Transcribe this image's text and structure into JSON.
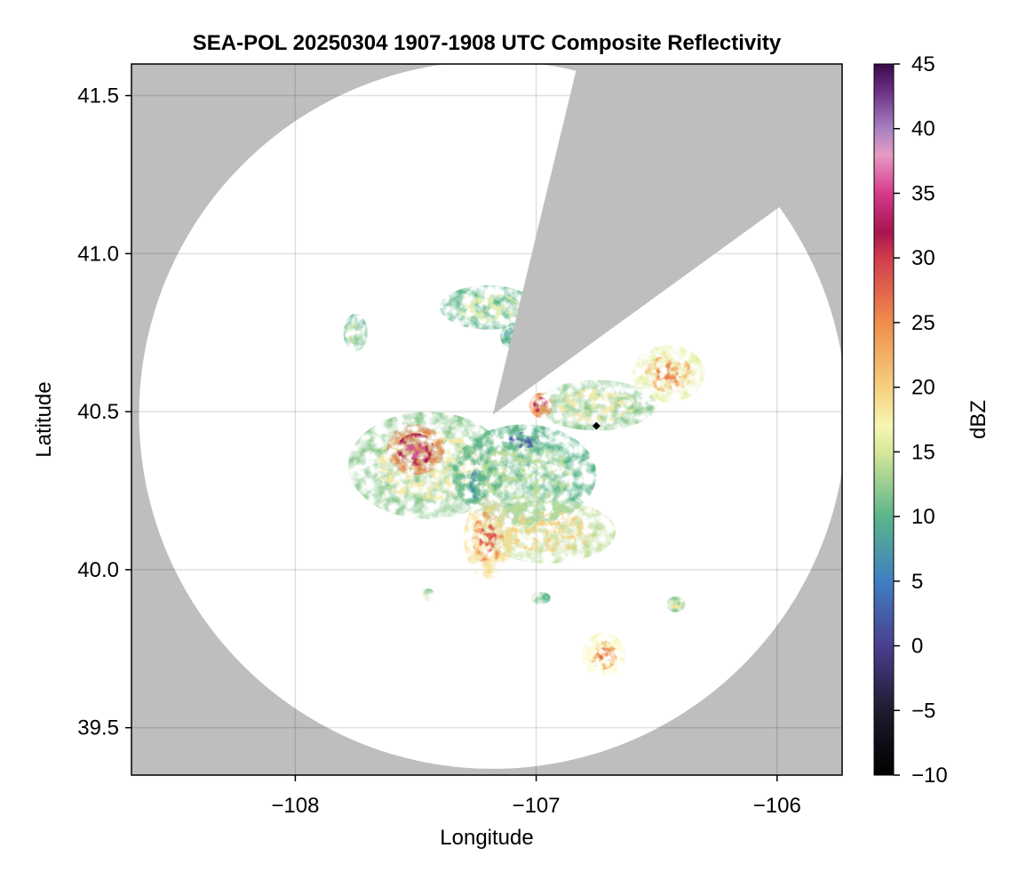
{
  "chart_data": {
    "type": "heatmap",
    "title": "SEA-POL 20250304 1907-1908 UTC Composite Reflectivity",
    "xlabel": "Longitude",
    "ylabel": "Latitude",
    "xlim": [
      -108.68,
      -105.73
    ],
    "ylim": [
      39.35,
      41.6
    ],
    "x_ticks": [
      {
        "value": -108,
        "label": "−108"
      },
      {
        "value": -107,
        "label": "−107"
      },
      {
        "value": -106,
        "label": "−106"
      }
    ],
    "y_ticks": [
      {
        "value": 39.5,
        "label": "39.5"
      },
      {
        "value": 40.0,
        "label": "40.0"
      },
      {
        "value": 40.5,
        "label": "40.5"
      },
      {
        "value": 41.0,
        "label": "41.0"
      },
      {
        "value": 41.5,
        "label": "41.5"
      }
    ],
    "grid": true,
    "radar_site": {
      "lon": -107.18,
      "lat": 40.49
    },
    "radar_coverage_radius_deg_lat": 1.12,
    "blocked_sectors": [
      {
        "lon_corners": [
          [
            -107.18,
            40.49
          ],
          [
            -106.85,
            41.53
          ],
          [
            -106.04,
            41.12
          ]
        ]
      }
    ],
    "marker": {
      "lon": -106.75,
      "lat": 40.455,
      "shape": "diamond"
    },
    "colorbar": {
      "label": "dBZ",
      "range": [
        -10,
        45
      ],
      "ticks": [
        -10,
        -5,
        0,
        5,
        10,
        15,
        20,
        25,
        30,
        35,
        40,
        45
      ],
      "tick_labels": [
        "−10",
        "−5",
        "0",
        "5",
        "10",
        "15",
        "20",
        "25",
        "30",
        "35",
        "40",
        "45"
      ],
      "colormap": "spectral-like",
      "stops": [
        {
          "v": -10,
          "c": "#000000"
        },
        {
          "v": -5,
          "c": "#1e1b2e"
        },
        {
          "v": 0,
          "c": "#4a3f8f"
        },
        {
          "v": 5,
          "c": "#3f7fc2"
        },
        {
          "v": 10,
          "c": "#5bb58a"
        },
        {
          "v": 15,
          "c": "#d7e79a"
        },
        {
          "v": 17,
          "c": "#f6f6b3"
        },
        {
          "v": 20,
          "c": "#f5d07f"
        },
        {
          "v": 25,
          "c": "#ef8d4c"
        },
        {
          "v": 30,
          "c": "#d23c4e"
        },
        {
          "v": 32,
          "c": "#a8144f"
        },
        {
          "v": 35,
          "c": "#d63a8c"
        },
        {
          "v": 38,
          "c": "#e79bc4"
        },
        {
          "v": 40,
          "c": "#a781c0"
        },
        {
          "v": 43,
          "c": "#6a2d83"
        },
        {
          "v": 45,
          "c": "#3a0a4a"
        }
      ]
    },
    "colors": {
      "masked": "#bebebe",
      "no_echo": "#ffffff",
      "grid": "#d9d9d9"
    },
    "echo_regions": [
      {
        "lon": -107.45,
        "lat": 40.33,
        "rx": 0.33,
        "ry": 0.17,
        "dbz": 18
      },
      {
        "lon": -107.5,
        "lat": 40.38,
        "rx": 0.12,
        "ry": 0.08,
        "dbz": 32
      },
      {
        "lon": -107.05,
        "lat": 40.3,
        "rx": 0.3,
        "ry": 0.16,
        "dbz": 14
      },
      {
        "lon": -106.95,
        "lat": 40.12,
        "rx": 0.28,
        "ry": 0.1,
        "dbz": 20
      },
      {
        "lon": -107.2,
        "lat": 40.1,
        "rx": 0.1,
        "ry": 0.13,
        "dbz": 25
      },
      {
        "lon": -107.05,
        "lat": 40.41,
        "rx": 0.1,
        "ry": 0.04,
        "dbz": 2
      },
      {
        "lon": -107.25,
        "lat": 40.27,
        "rx": 0.04,
        "ry": 0.07,
        "dbz": 6
      },
      {
        "lon": -107.2,
        "lat": 40.83,
        "rx": 0.2,
        "ry": 0.07,
        "dbz": 16
      },
      {
        "lon": -107.1,
        "lat": 40.74,
        "rx": 0.05,
        "ry": 0.04,
        "dbz": 6
      },
      {
        "lon": -106.75,
        "lat": 40.52,
        "rx": 0.25,
        "ry": 0.08,
        "dbz": 18
      },
      {
        "lon": -106.98,
        "lat": 40.52,
        "rx": 0.05,
        "ry": 0.04,
        "dbz": 31
      },
      {
        "lon": -106.45,
        "lat": 40.62,
        "rx": 0.15,
        "ry": 0.09,
        "dbz": 22
      },
      {
        "lon": -106.72,
        "lat": 39.73,
        "rx": 0.09,
        "ry": 0.07,
        "dbz": 23
      },
      {
        "lon": -106.42,
        "lat": 39.89,
        "rx": 0.04,
        "ry": 0.025,
        "dbz": 18
      },
      {
        "lon": -106.98,
        "lat": 39.91,
        "rx": 0.04,
        "ry": 0.02,
        "dbz": 16
      },
      {
        "lon": -107.45,
        "lat": 39.92,
        "rx": 0.03,
        "ry": 0.02,
        "dbz": 18
      },
      {
        "lon": -107.75,
        "lat": 40.75,
        "rx": 0.05,
        "ry": 0.06,
        "dbz": 14
      }
    ]
  }
}
